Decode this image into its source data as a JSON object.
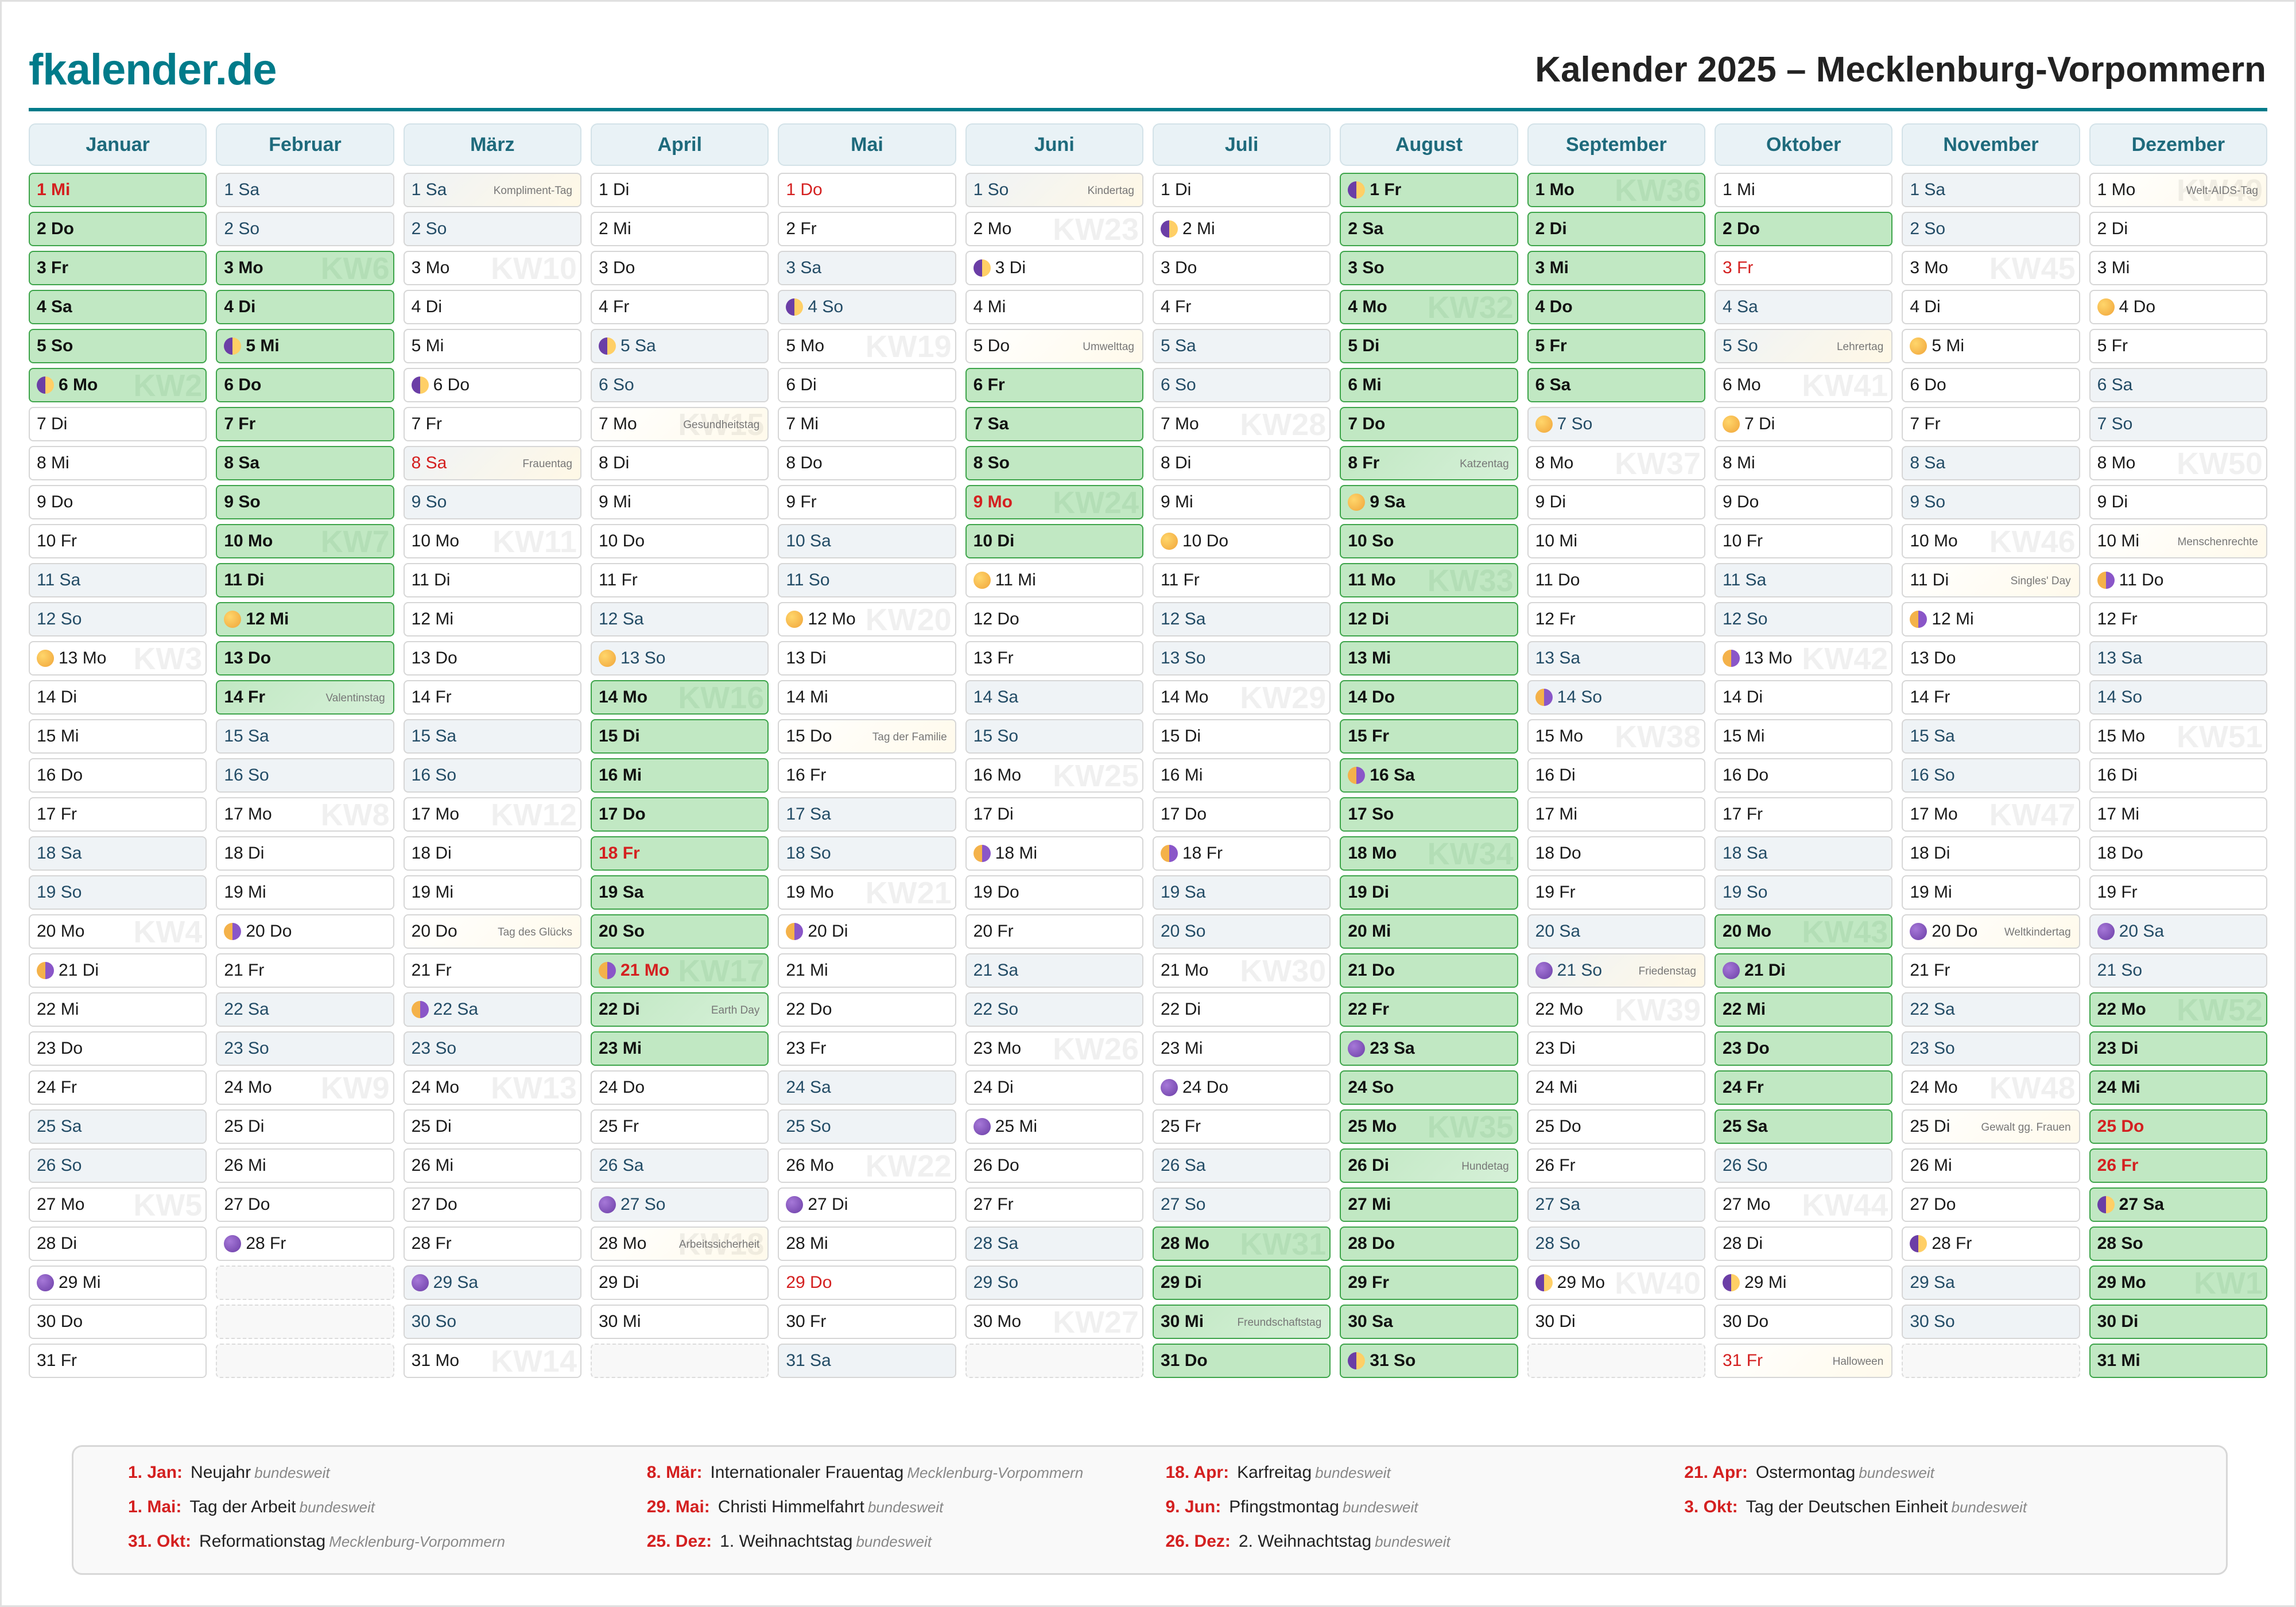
{
  "header": {
    "logo": "fkalender.de",
    "title": "Kalender 2025 – Mecklenburg-Vorpommern"
  },
  "colors": {
    "brand": "#007b8a",
    "holiday_bg": "#c1e8c3",
    "holiday_border": "#3da44a",
    "holiday_red": "#d42020",
    "weekend_bg": "#eff3f6"
  },
  "weekday_abbr": [
    "Mo",
    "Di",
    "Mi",
    "Do",
    "Fr",
    "Sa",
    "So"
  ],
  "months": [
    {
      "name": "Januar",
      "days": 31,
      "start": 2,
      "vacation": [
        1,
        2,
        3,
        4,
        5,
        6
      ],
      "public_holidays": [
        1
      ],
      "moons": {
        "6": "first",
        "13": "full",
        "21": "last",
        "29": "new"
      },
      "kw": {
        "6": "KW2",
        "13": "KW3",
        "20": "KW4",
        "27": "KW5"
      },
      "events": {}
    },
    {
      "name": "Februar",
      "days": 28,
      "start": 5,
      "vacation": [
        3,
        4,
        5,
        6,
        7,
        8,
        9,
        10,
        11,
        12,
        13,
        14
      ],
      "public_holidays": [],
      "moons": {
        "5": "first",
        "12": "full",
        "20": "last",
        "28": "new"
      },
      "kw": {
        "3": "KW6",
        "10": "KW7",
        "17": "KW8",
        "24": "KW9"
      },
      "events": {
        "14": "Valentinstag"
      }
    },
    {
      "name": "März",
      "days": 31,
      "start": 5,
      "vacation": [],
      "public_holidays": [
        8
      ],
      "moons": {
        "6": "first",
        "22": "last",
        "29": "new"
      },
      "kw": {
        "3": "KW10",
        "10": "KW11",
        "17": "KW12",
        "24": "KW13",
        "31": "KW14"
      },
      "events": {
        "1": "Kompliment-Tag",
        "8": "Frauentag",
        "20": "Tag des Glücks"
      }
    },
    {
      "name": "April",
      "days": 30,
      "start": 1,
      "vacation": [
        14,
        15,
        16,
        17,
        18,
        19,
        20,
        21,
        22,
        23
      ],
      "public_holidays": [
        18,
        21
      ],
      "moons": {
        "5": "first",
        "13": "full",
        "21": "last",
        "27": "new"
      },
      "kw": {
        "7": "KW15",
        "14": "KW16",
        "21": "KW17",
        "28": "KW18"
      },
      "events": {
        "7": "Gesundheitstag",
        "22": "Earth Day",
        "28": "Arbeitssicherheit"
      }
    },
    {
      "name": "Mai",
      "days": 31,
      "start": 3,
      "vacation": [],
      "public_holidays": [
        1,
        29
      ],
      "moons": {
        "4": "first",
        "12": "full",
        "20": "last",
        "27": "new"
      },
      "kw": {
        "5": "KW19",
        "12": "KW20",
        "19": "KW21",
        "26": "KW22"
      },
      "events": {
        "15": "Tag der Familie"
      }
    },
    {
      "name": "Juni",
      "days": 30,
      "start": 6,
      "vacation": [
        6,
        7,
        8,
        9,
        10
      ],
      "public_holidays": [
        9
      ],
      "moons": {
        "3": "first",
        "11": "full",
        "18": "last",
        "25": "new"
      },
      "kw": {
        "2": "KW23",
        "9": "KW24",
        "16": "KW25",
        "23": "KW26",
        "30": "KW27"
      },
      "events": {
        "1": "Kindertag",
        "5": "Umwelttag"
      }
    },
    {
      "name": "Juli",
      "days": 31,
      "start": 1,
      "vacation": [
        28,
        29,
        30,
        31
      ],
      "public_holidays": [],
      "moons": {
        "2": "first",
        "10": "full",
        "18": "last",
        "24": "new"
      },
      "kw": {
        "7": "KW28",
        "14": "KW29",
        "21": "KW30",
        "28": "KW31"
      },
      "events": {
        "30": "Freundschaftstag"
      }
    },
    {
      "name": "August",
      "days": 31,
      "start": 4,
      "vacation": [
        1,
        2,
        3,
        4,
        5,
        6,
        7,
        8,
        9,
        10,
        11,
        12,
        13,
        14,
        15,
        16,
        17,
        18,
        19,
        20,
        21,
        22,
        23,
        24,
        25,
        26,
        27,
        28,
        29,
        30,
        31
      ],
      "public_holidays": [],
      "moons": {
        "1": "first",
        "9": "full",
        "16": "last",
        "23": "new",
        "31": "first"
      },
      "kw": {
        "4": "KW32",
        "11": "KW33",
        "18": "KW34",
        "25": "KW35"
      },
      "events": {
        "8": "Katzentag",
        "26": "Hundetag"
      }
    },
    {
      "name": "September",
      "days": 30,
      "start": 0,
      "vacation": [
        1,
        2,
        3,
        4,
        5,
        6
      ],
      "public_holidays": [],
      "moons": {
        "7": "full",
        "14": "last",
        "21": "new",
        "29": "first"
      },
      "kw": {
        "1": "KW36",
        "8": "KW37",
        "15": "KW38",
        "22": "KW39",
        "29": "KW40"
      },
      "events": {
        "21": "Friedenstag"
      }
    },
    {
      "name": "Oktober",
      "days": 31,
      "start": 2,
      "vacation": [
        2,
        20,
        21,
        22,
        23,
        24,
        25
      ],
      "public_holidays": [
        3,
        31
      ],
      "moons": {
        "7": "full",
        "13": "last",
        "21": "new",
        "29": "first"
      },
      "kw": {
        "6": "KW41",
        "13": "KW42",
        "20": "KW43",
        "27": "KW44"
      },
      "events": {
        "5": "Lehrertag",
        "31": "Halloween"
      }
    },
    {
      "name": "November",
      "days": 30,
      "start": 5,
      "vacation": [],
      "public_holidays": [],
      "moons": {
        "5": "full",
        "12": "last",
        "20": "new",
        "28": "first"
      },
      "kw": {
        "3": "KW45",
        "10": "KW46",
        "17": "KW47",
        "24": "KW48"
      },
      "events": {
        "11": "Singles' Day",
        "20": "Weltkindertag",
        "25": "Gewalt gg. Frauen"
      }
    },
    {
      "name": "Dezember",
      "days": 31,
      "start": 0,
      "vacation": [
        22,
        23,
        24,
        25,
        26,
        27,
        28,
        29,
        30,
        31
      ],
      "public_holidays": [
        25,
        26
      ],
      "moons": {
        "4": "full",
        "11": "last",
        "20": "new",
        "27": "first"
      },
      "kw": {
        "1": "KW49",
        "8": "KW50",
        "15": "KW51",
        "22": "KW52",
        "29": "KW1"
      },
      "events": {
        "1": "Welt-AIDS-Tag",
        "10": "Menschenrechte"
      }
    }
  ],
  "legend": [
    {
      "date": "1. Jan:",
      "name": "Neujahr",
      "scope": "bundesweit"
    },
    {
      "date": "8. Mär:",
      "name": "Internationaler Frauentag",
      "scope": "Mecklenburg-Vorpommern"
    },
    {
      "date": "18. Apr:",
      "name": "Karfreitag",
      "scope": "bundesweit"
    },
    {
      "date": "21. Apr:",
      "name": "Ostermontag",
      "scope": "bundesweit"
    },
    {
      "date": "1. Mai:",
      "name": "Tag der Arbeit",
      "scope": "bundesweit"
    },
    {
      "date": "29. Mai:",
      "name": "Christi Himmelfahrt",
      "scope": "bundesweit"
    },
    {
      "date": "9. Jun:",
      "name": "Pfingstmontag",
      "scope": "bundesweit"
    },
    {
      "date": "3. Okt:",
      "name": "Tag der Deutschen Einheit",
      "scope": "bundesweit"
    },
    {
      "date": "31. Okt:",
      "name": "Reformationstag",
      "scope": "Mecklenburg-Vorpommern"
    },
    {
      "date": "25. Dez:",
      "name": "1. Weihnachtstag",
      "scope": "bundesweit"
    },
    {
      "date": "26. Dez:",
      "name": "2. Weihnachtstag",
      "scope": "bundesweit"
    }
  ]
}
